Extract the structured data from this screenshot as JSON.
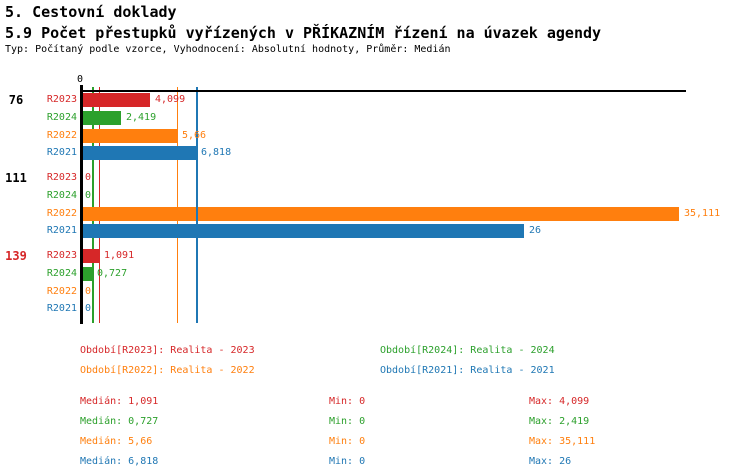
{
  "header": {
    "title_line1": "5. Cestovní doklady",
    "title_line2": "5.9 Počet přestupků vyřízených v PŘÍKAZNÍM řízení na úvazek agendy",
    "subtitle": "Typ: Počítaný podle vzorce, Vyhodnocení: Absolutní hodnoty, Průměr: Medián"
  },
  "colors": {
    "R2023": "#d62728",
    "R2024": "#2ca02c",
    "R2022": "#ff7f0e",
    "R2021": "#1f77b4",
    "axis": "#000000",
    "group_label_default": "#000000",
    "group_label_highlight": "#d62728"
  },
  "chart_data": {
    "type": "bar",
    "orientation": "horizontal",
    "value_axis": {
      "zero_label": "0",
      "min": 0,
      "approx_max_extent": 35.5,
      "grid": false
    },
    "series_order": [
      "R2023",
      "R2024",
      "R2022",
      "R2021"
    ],
    "median_lines": [
      {
        "series": "R2023",
        "value": 1.091
      },
      {
        "series": "R2024",
        "value": 0.727
      },
      {
        "series": "R2022",
        "value": 5.66
      },
      {
        "series": "R2021",
        "value": 6.818
      }
    ],
    "groups": [
      {
        "label": "76",
        "highlight": false,
        "bars": [
          {
            "series": "R2023",
            "value": 4.099,
            "display": "4,099"
          },
          {
            "series": "R2024",
            "value": 2.419,
            "display": "2,419"
          },
          {
            "series": "R2022",
            "value": 5.66,
            "display": "5,66"
          },
          {
            "series": "R2021",
            "value": 6.818,
            "display": "6,818"
          }
        ]
      },
      {
        "label": "111",
        "highlight": false,
        "bars": [
          {
            "series": "R2023",
            "value": 0,
            "display": "0"
          },
          {
            "series": "R2024",
            "value": 0,
            "display": "0"
          },
          {
            "series": "R2022",
            "value": 35.111,
            "display": "35,111"
          },
          {
            "series": "R2021",
            "value": 26,
            "display": "26"
          }
        ]
      },
      {
        "label": "139",
        "highlight": true,
        "bars": [
          {
            "series": "R2023",
            "value": 1.091,
            "display": "1,091"
          },
          {
            "series": "R2024",
            "value": 0.727,
            "display": "0,727"
          },
          {
            "series": "R2022",
            "value": 0,
            "display": "0"
          },
          {
            "series": "R2021",
            "value": 0,
            "display": "0"
          }
        ]
      }
    ]
  },
  "legend": {
    "items": [
      {
        "series": "R2023",
        "label": "Období[R2023]: Realita - 2023"
      },
      {
        "series": "R2024",
        "label": "Období[R2024]: Realita - 2024"
      },
      {
        "series": "R2022",
        "label": "Období[R2022]: Realita - 2022"
      },
      {
        "series": "R2021",
        "label": "Období[R2021]: Realita - 2021"
      }
    ]
  },
  "stats": {
    "rows": [
      {
        "series": "R2023",
        "median": "Medián: 1,091",
        "min": "Min: 0",
        "max": "Max: 4,099"
      },
      {
        "series": "R2024",
        "median": "Medián: 0,727",
        "min": "Min: 0",
        "max": "Max: 2,419"
      },
      {
        "series": "R2022",
        "median": "Medián: 5,66",
        "min": "Min: 0",
        "max": "Max: 35,111"
      },
      {
        "series": "R2021",
        "median": "Medián: 6,818",
        "min": "Min: 0",
        "max": "Max: 26"
      }
    ]
  }
}
